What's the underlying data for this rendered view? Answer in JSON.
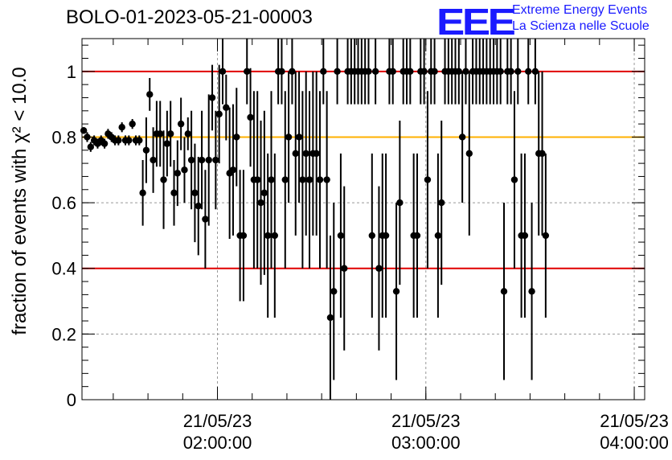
{
  "header": {
    "title": "BOLO-01-2023-05-21-00003",
    "logo_text": "EEE",
    "logo_line1": "Extreme Energy Events",
    "logo_line2": "La Scienza nelle Scuole"
  },
  "colors": {
    "logo": "#1a1aff",
    "threshold_lines": "#e00000",
    "mean_line": "#ffb000",
    "points": "#000000",
    "grid": "#999999"
  },
  "chart_data": {
    "type": "scatter",
    "title": "BOLO-01-2023-05-21-00003",
    "ylabel": "fraction of events with",
    "ylabel_math": "χ² < 10.0",
    "xlabel": "",
    "xlim": [
      81,
      243
    ],
    "ylim": [
      0,
      1.1
    ],
    "yticks": [
      0,
      0.2,
      0.4,
      0.6,
      0.8,
      1
    ],
    "ytick_labels": [
      "0",
      "0.2",
      "0.4",
      "0.6",
      "0.8",
      "1"
    ],
    "xticks": [
      {
        "x": 120,
        "line1": "21/05/23",
        "line2": "02:00:00"
      },
      {
        "x": 180,
        "line1": "21/05/23",
        "line2": "03:00:00"
      },
      {
        "x": 240,
        "line1": "21/05/23",
        "line2": "04:00:00"
      }
    ],
    "x_unit": "minutes after 2023-05-21 00:00:00",
    "grid": true,
    "hlines": [
      {
        "y": 1.0,
        "color": "#e00000"
      },
      {
        "y": 0.4,
        "color": "#e00000"
      },
      {
        "y": 0.8,
        "color": "#ffb000"
      }
    ],
    "series": [
      {
        "points": [
          [
            81.5,
            0.82,
            0.01
          ],
          [
            82.5,
            0.8,
            0.015
          ],
          [
            83.5,
            0.77,
            0.015
          ],
          [
            84.5,
            0.79,
            0.015
          ],
          [
            85.5,
            0.78,
            0.015
          ],
          [
            86.5,
            0.79,
            0.015
          ],
          [
            87.5,
            0.78,
            0.015
          ],
          [
            88.5,
            0.81,
            0.015
          ],
          [
            89.5,
            0.8,
            0.015
          ],
          [
            90.5,
            0.79,
            0.015
          ],
          [
            91.5,
            0.79,
            0.015
          ],
          [
            92.5,
            0.83,
            0.015
          ],
          [
            93.5,
            0.79,
            0.015
          ],
          [
            94.5,
            0.79,
            0.015
          ],
          [
            95.5,
            0.84,
            0.015
          ],
          [
            96.5,
            0.79,
            0.015
          ],
          [
            97.5,
            0.79,
            0.015
          ],
          [
            98.5,
            0.63,
            0.1
          ],
          [
            99.5,
            0.76,
            0.1
          ],
          [
            100.5,
            0.93,
            0.05
          ],
          [
            101.5,
            0.73,
            0.1
          ],
          [
            102.5,
            0.81,
            0.1
          ],
          [
            103.5,
            0.81,
            0.1
          ],
          [
            104.5,
            0.67,
            0.15
          ],
          [
            105.5,
            0.78,
            0.1
          ],
          [
            106.5,
            0.81,
            0.1
          ],
          [
            107.5,
            0.63,
            0.1
          ],
          [
            108.5,
            0.69,
            0.1
          ],
          [
            109.5,
            0.84,
            0.08
          ],
          [
            110.5,
            0.7,
            0.1
          ],
          [
            111.5,
            0.81,
            0.05
          ],
          [
            112.5,
            0.73,
            0.15
          ],
          [
            113.5,
            0.63,
            0.15
          ],
          [
            114.5,
            0.59,
            0.15
          ],
          [
            115.5,
            0.73,
            0.15
          ],
          [
            116.5,
            0.55,
            0.15
          ],
          [
            117.5,
            0.73,
            0.2
          ],
          [
            118.5,
            0.92,
            0.1
          ],
          [
            119.5,
            0.73,
            0.15
          ],
          [
            120.5,
            0.87,
            0.15
          ],
          [
            121.5,
            1.0,
            0.1
          ],
          [
            122.5,
            0.89,
            0.1
          ],
          [
            123.5,
            0.69,
            0.2
          ],
          [
            124.5,
            0.7,
            0.2
          ],
          [
            125.5,
            0.8,
            0.15
          ],
          [
            126.5,
            0.5,
            0.2
          ],
          [
            127.5,
            0.5,
            0.2
          ],
          [
            128.5,
            1.0,
            0.1
          ],
          [
            129.5,
            0.86,
            0.15
          ],
          [
            130.5,
            0.67,
            0.27
          ],
          [
            131.5,
            0.67,
            0.27
          ],
          [
            132.5,
            0.6,
            0.25
          ],
          [
            133.5,
            0.63,
            0.25
          ],
          [
            134.5,
            0.5,
            0.25
          ],
          [
            135.5,
            0.67,
            0.27
          ],
          [
            136.5,
            0.5,
            0.25
          ],
          [
            137.5,
            1.0,
            0.1
          ],
          [
            138.5,
            1.0,
            0.1
          ],
          [
            139.5,
            0.67,
            0.27
          ],
          [
            140.5,
            0.8,
            0.2
          ],
          [
            141.5,
            1.0,
            0.1
          ],
          [
            142.5,
            0.75,
            0.25
          ],
          [
            143.5,
            0.8,
            0.2
          ],
          [
            144.5,
            0.67,
            0.27
          ],
          [
            145.5,
            0.75,
            0.25
          ],
          [
            146.5,
            0.67,
            0.27
          ],
          [
            147.5,
            0.75,
            0.25
          ],
          [
            148.5,
            0.75,
            0.25
          ],
          [
            149.5,
            0.67,
            0.27
          ],
          [
            150.5,
            1.0,
            0.1
          ],
          [
            151.5,
            0.67,
            0.27
          ],
          [
            152.5,
            0.25,
            0.25
          ],
          [
            153.5,
            0.33,
            0.27
          ],
          [
            154.5,
            1.0,
            0.1
          ],
          [
            155.5,
            0.5,
            0.25
          ],
          [
            156.5,
            0.4,
            0.25
          ],
          [
            157.5,
            1.0,
            0.1
          ],
          [
            158.5,
            1.0,
            0.1
          ],
          [
            159.5,
            1.0,
            0.1
          ],
          [
            160.5,
            1.0,
            0.1
          ],
          [
            161.5,
            1.0,
            0.1
          ],
          [
            162.5,
            1.0,
            0.1
          ],
          [
            163.5,
            1.0,
            0.1
          ],
          [
            164.5,
            0.5,
            0.25
          ],
          [
            165.5,
            1.0,
            0.1
          ],
          [
            166.5,
            0.4,
            0.25
          ],
          [
            167.5,
            0.5,
            0.25
          ],
          [
            168.5,
            0.5,
            0.25
          ],
          [
            169.5,
            1.0,
            0.1
          ],
          [
            170.5,
            1.0,
            0.1
          ],
          [
            171.5,
            0.33,
            0.27
          ],
          [
            172.5,
            0.6,
            0.25
          ],
          [
            173.5,
            1.0,
            0.1
          ],
          [
            174.5,
            1.0,
            0.1
          ],
          [
            175.5,
            1.0,
            0.1
          ],
          [
            176.5,
            0.5,
            0.25
          ],
          [
            177.5,
            0.5,
            0.25
          ],
          [
            178.5,
            1.0,
            0.1
          ],
          [
            179.5,
            1.0,
            0.1
          ],
          [
            180.5,
            0.67,
            0.27
          ],
          [
            181.5,
            1.0,
            0.1
          ],
          [
            182.5,
            1.0,
            0.1
          ],
          [
            183.5,
            0.5,
            0.25
          ],
          [
            184.5,
            0.6,
            0.25
          ],
          [
            185.5,
            1.0,
            0.1
          ],
          [
            186.5,
            1.0,
            0.1
          ],
          [
            187.5,
            1.0,
            0.1
          ],
          [
            188.5,
            1.0,
            0.1
          ],
          [
            189.5,
            1.0,
            0.1
          ],
          [
            190.5,
            0.8,
            0.2
          ],
          [
            191.5,
            1.0,
            0.1
          ],
          [
            192.5,
            0.75,
            0.25
          ],
          [
            193.5,
            1.0,
            0.1
          ],
          [
            194.5,
            1.0,
            0.1
          ],
          [
            195.5,
            1.0,
            0.1
          ],
          [
            196.5,
            1.0,
            0.1
          ],
          [
            197.5,
            1.0,
            0.1
          ],
          [
            198.5,
            1.0,
            0.1
          ],
          [
            199.5,
            1.0,
            0.1
          ],
          [
            200.5,
            1.0,
            0.1
          ],
          [
            201.5,
            1.0,
            0.1
          ],
          [
            202.5,
            0.33,
            0.27
          ],
          [
            203.5,
            1.0,
            0.1
          ],
          [
            204.5,
            1.0,
            0.1
          ],
          [
            205.5,
            0.67,
            0.27
          ],
          [
            206.5,
            1.0,
            0.1
          ],
          [
            207.5,
            0.5,
            0.25
          ],
          [
            208.5,
            0.5,
            0.25
          ],
          [
            209.5,
            1.0,
            0.1
          ],
          [
            210.5,
            0.33,
            0.27
          ],
          [
            211.5,
            1.0,
            0.1
          ],
          [
            212.5,
            0.75,
            0.25
          ],
          [
            213.5,
            0.75,
            0.25
          ],
          [
            214.5,
            0.5,
            0.25
          ]
        ]
      }
    ]
  }
}
